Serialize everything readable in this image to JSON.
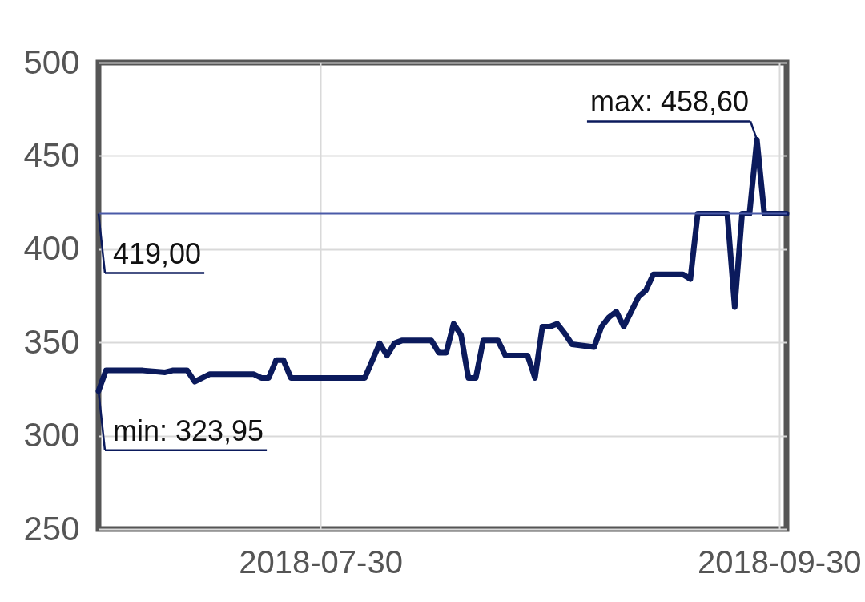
{
  "chart_data": {
    "type": "line",
    "x": [
      "2018-06-30",
      "2018-07-01",
      "2018-07-06",
      "2018-07-09",
      "2018-07-10",
      "2018-07-12",
      "2018-07-13",
      "2018-07-15",
      "2018-07-21",
      "2018-07-22",
      "2018-07-23",
      "2018-07-24",
      "2018-07-25",
      "2018-07-26",
      "2018-08-05",
      "2018-08-07",
      "2018-08-08",
      "2018-08-09",
      "2018-08-10",
      "2018-08-14",
      "2018-08-15",
      "2018-08-16",
      "2018-08-17",
      "2018-08-18",
      "2018-08-19",
      "2018-08-20",
      "2018-08-21",
      "2018-08-23",
      "2018-08-24",
      "2018-08-27",
      "2018-08-28",
      "2018-08-29",
      "2018-08-30",
      "2018-08-31",
      "2018-09-01",
      "2018-09-02",
      "2018-09-05",
      "2018-09-06",
      "2018-09-07",
      "2018-09-08",
      "2018-09-09",
      "2018-09-11",
      "2018-09-12",
      "2018-09-13",
      "2018-09-17",
      "2018-09-18",
      "2018-09-19",
      "2018-09-23",
      "2018-09-24",
      "2018-09-25",
      "2018-09-26",
      "2018-09-27",
      "2018-09-28",
      "2018-10-01"
    ],
    "series": [
      {
        "color": "#0b1a5c",
        "values": [
          323.95,
          335,
          335,
          334,
          335,
          335,
          329,
          333,
          333,
          331,
          331,
          340.5,
          340.5,
          331,
          331,
          349.5,
          343,
          349.5,
          351,
          351,
          344.5,
          344.5,
          360,
          354,
          331,
          331,
          351,
          351,
          343,
          343,
          331,
          358.5,
          358.5,
          360,
          355,
          349,
          347.5,
          358.5,
          363.5,
          366.5,
          358.5,
          374.5,
          378,
          386.5,
          386.5,
          384,
          419,
          419,
          369,
          419,
          419,
          458.6,
          419,
          419
        ]
      }
    ],
    "xlim": [
      "2018-06-30",
      "2018-10-01"
    ],
    "xticks": [
      "2018-07-30",
      "2018-09-30"
    ],
    "ylim": [
      250,
      500
    ],
    "yticks": [
      250,
      300,
      350,
      400,
      450,
      500
    ],
    "grid": true,
    "line_style": "solid",
    "ref_lines": [
      {
        "axis": "y",
        "value": 419,
        "label": "419,00",
        "color": "#4a5aa8"
      }
    ],
    "annotations": [
      {
        "text": "max: 458,60",
        "x": "2018-09-27",
        "y": 458.6
      },
      {
        "text": "min: 323,95",
        "x": "2018-06-30",
        "y": 323.95
      }
    ]
  }
}
